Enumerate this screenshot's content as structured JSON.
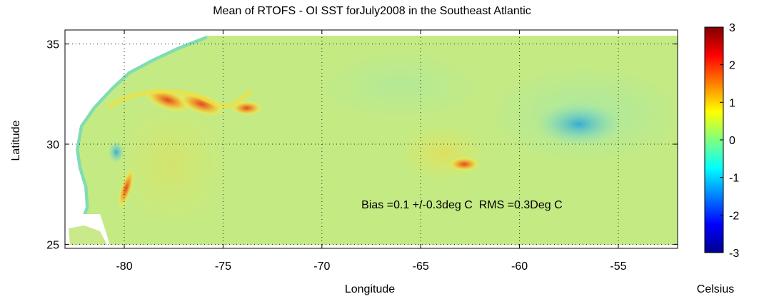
{
  "chart_data": {
    "type": "heatmap",
    "title": "Mean of RTOFS - OI SST forJuly2008 in the Southeast Atlantic",
    "xlabel": "Longitude",
    "ylabel": "Latitude",
    "xlim": [
      -83,
      -52
    ],
    "ylim": [
      24.8,
      35.7
    ],
    "xticks": [
      -80,
      -75,
      -70,
      -65,
      -60,
      -55
    ],
    "yticks": [
      25,
      30,
      35
    ],
    "grid": "dotted",
    "annotation": "Bias =0.1 +/-0.3deg C  RMS =0.3Deg C",
    "annotation_position": {
      "lon": -68,
      "lat": 26.8
    },
    "colorbar": {
      "label": "Celsius",
      "min": -3,
      "max": 3,
      "ticks": [
        3,
        2,
        1,
        0,
        -1,
        -2,
        -3
      ],
      "colormap": "jet"
    },
    "background_value": 0.1,
    "features": [
      {
        "name": "gulf-stream-warm-core-1",
        "lon": -77.8,
        "lat": 32.2,
        "value": 1.8
      },
      {
        "name": "gulf-stream-warm-core-2",
        "lon": -76.1,
        "lat": 32.0,
        "value": 2.1
      },
      {
        "name": "gulf-stream-warm-core-3",
        "lon": -73.8,
        "lat": 31.8,
        "value": 1.1
      },
      {
        "name": "florida-coast-warm-band",
        "lon": -79.9,
        "lat": 27.8,
        "value": 1.6
      },
      {
        "name": "offshore-warm-eddy",
        "lon": -62.8,
        "lat": 29.0,
        "value": 1.0
      },
      {
        "name": "coastal-cool-patch",
        "lon": -80.4,
        "lat": 29.6,
        "value": -1.1
      },
      {
        "name": "northeast-cool-patch",
        "lon": -57.0,
        "lat": 31.0,
        "value": -0.4
      }
    ]
  }
}
